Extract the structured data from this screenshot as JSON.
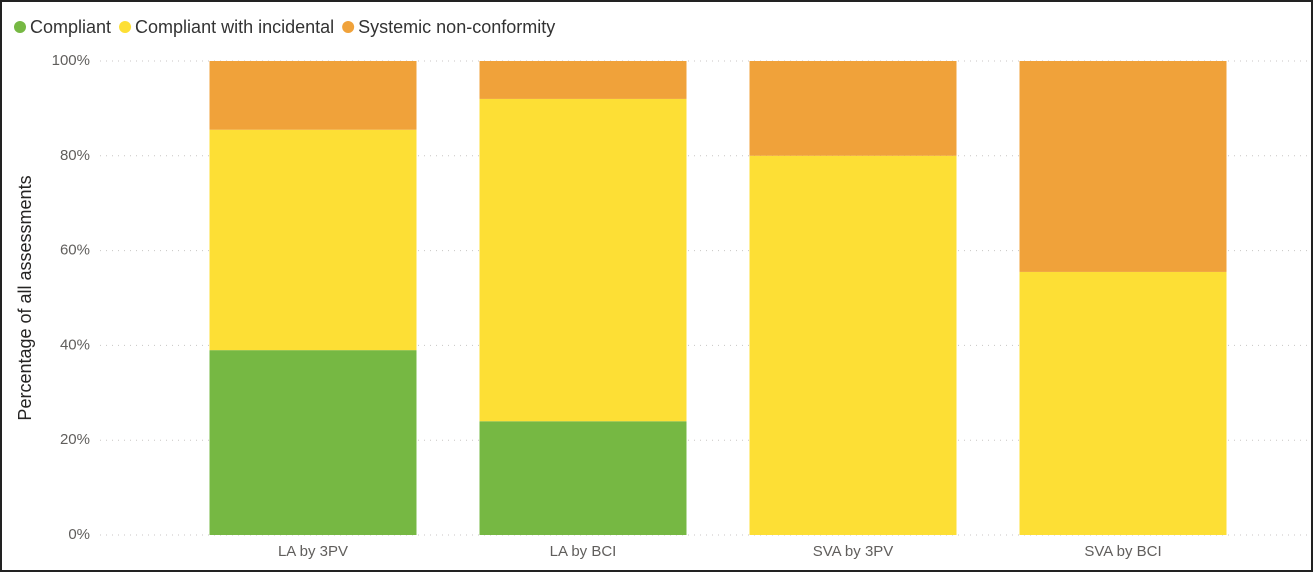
{
  "chart_data": {
    "type": "stacked_bar",
    "y_label": "Percentage of all assessments",
    "categories": [
      "LA by 3PV",
      "LA by BCI",
      "SVA by 3PV",
      "SVA by BCI"
    ],
    "series": [
      {
        "name": "Compliant",
        "color": "#76b843",
        "values": [
          39,
          24,
          0,
          0
        ]
      },
      {
        "name": "Compliant with incidental",
        "color": "#fddf35",
        "values": [
          46.5,
          68,
          80,
          55.5
        ]
      },
      {
        "name": "Systemic non-conformity",
        "color": "#f0a23a",
        "values": [
          14.5,
          8,
          20,
          44.5
        ]
      }
    ],
    "ylim": [
      0,
      100
    ],
    "yticks": [
      {
        "value": 0,
        "label": "0%"
      },
      {
        "value": 20,
        "label": "20%"
      },
      {
        "value": 40,
        "label": "40%"
      },
      {
        "value": 60,
        "label": "60%"
      },
      {
        "value": 80,
        "label": "80%"
      },
      {
        "value": 100,
        "label": "100%"
      }
    ],
    "grid": true,
    "legend": "top-left"
  }
}
